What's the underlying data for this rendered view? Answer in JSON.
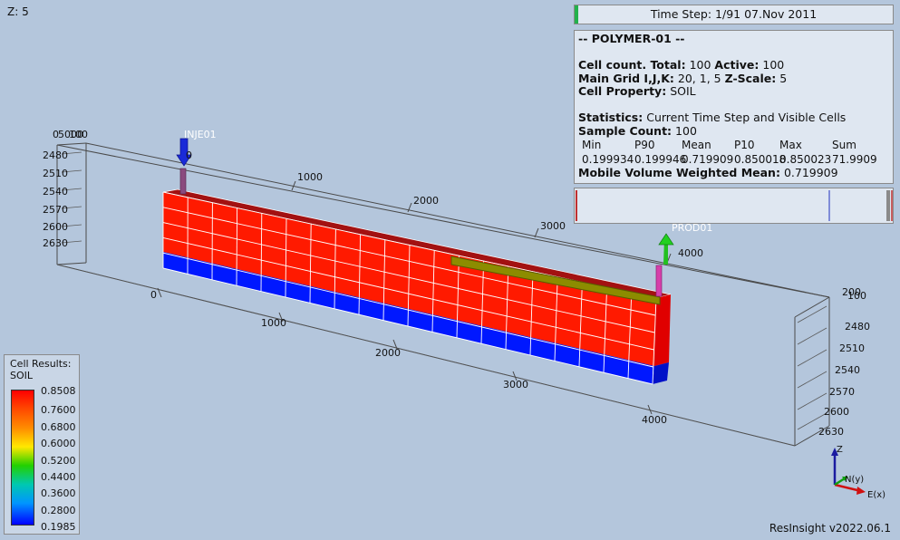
{
  "view": {
    "z_scale_label": "Z: 5",
    "version": "ResInsight v2022.06.1"
  },
  "time_step": {
    "text": "Time Step: 1/91 07.Nov 2011"
  },
  "info": {
    "case_name": "-- POLYMER-01 --",
    "cell_count_label": "Cell count. Total:",
    "cell_count_total": "100",
    "active_label": "Active:",
    "active_value": "100",
    "main_grid_label": "Main Grid I,J,K:",
    "main_grid_value": "20, 1, 5",
    "zscale_label": "Z-Scale:",
    "zscale_value": "5",
    "cell_property_label": "Cell Property:",
    "cell_property_value": "SOIL",
    "statistics_label": "Statistics:",
    "statistics_value": "Current Time Step and Visible Cells",
    "sample_count_label": "Sample Count:",
    "sample_count_value": "100",
    "stat_headers": [
      "Min",
      "P90",
      "Mean",
      "P10",
      "Max",
      "Sum"
    ],
    "stat_values": [
      "0.199934",
      "0.199946",
      "0.719909",
      "0.850018",
      "0.850023",
      "71.9909"
    ],
    "mobile_label": "Mobile Volume Weighted Mean:",
    "mobile_value": "0.719909"
  },
  "legend": {
    "title1": "Cell Results:",
    "title2": "SOIL",
    "ticks": [
      "0.8508",
      "0.7600",
      "0.6800",
      "0.6000",
      "0.5200",
      "0.4400",
      "0.3600",
      "0.2800",
      "0.1985"
    ]
  },
  "wells": {
    "injector": "INJE01",
    "producer": "PROD01"
  },
  "axes": {
    "front_x_ticks": [
      "0",
      "1000",
      "2000",
      "3000",
      "4000"
    ],
    "top_x_ticks": [
      "0",
      "1000",
      "2000",
      "3000",
      "4000"
    ],
    "left_depth_ticks": [
      "2480",
      "2510",
      "2540",
      "2570",
      "2600",
      "2630"
    ],
    "right_depth_ticks": [
      "2480",
      "2510",
      "2540",
      "2570",
      "2600",
      "2630"
    ],
    "left_corner_label": "0",
    "left_corner_label2": "5000",
    "left_corner_label3": "100",
    "right_corner_label": "200",
    "right_corner_label2": "100"
  },
  "compass": {
    "z": "Z",
    "n": "N(y)",
    "e": "E(x)"
  },
  "colors": {
    "red": "#ff0000",
    "blue": "#0010ff",
    "cell_edge": "#ffffff",
    "well_injector": "#7a3b6e",
    "well_producer": "#d63faa"
  }
}
